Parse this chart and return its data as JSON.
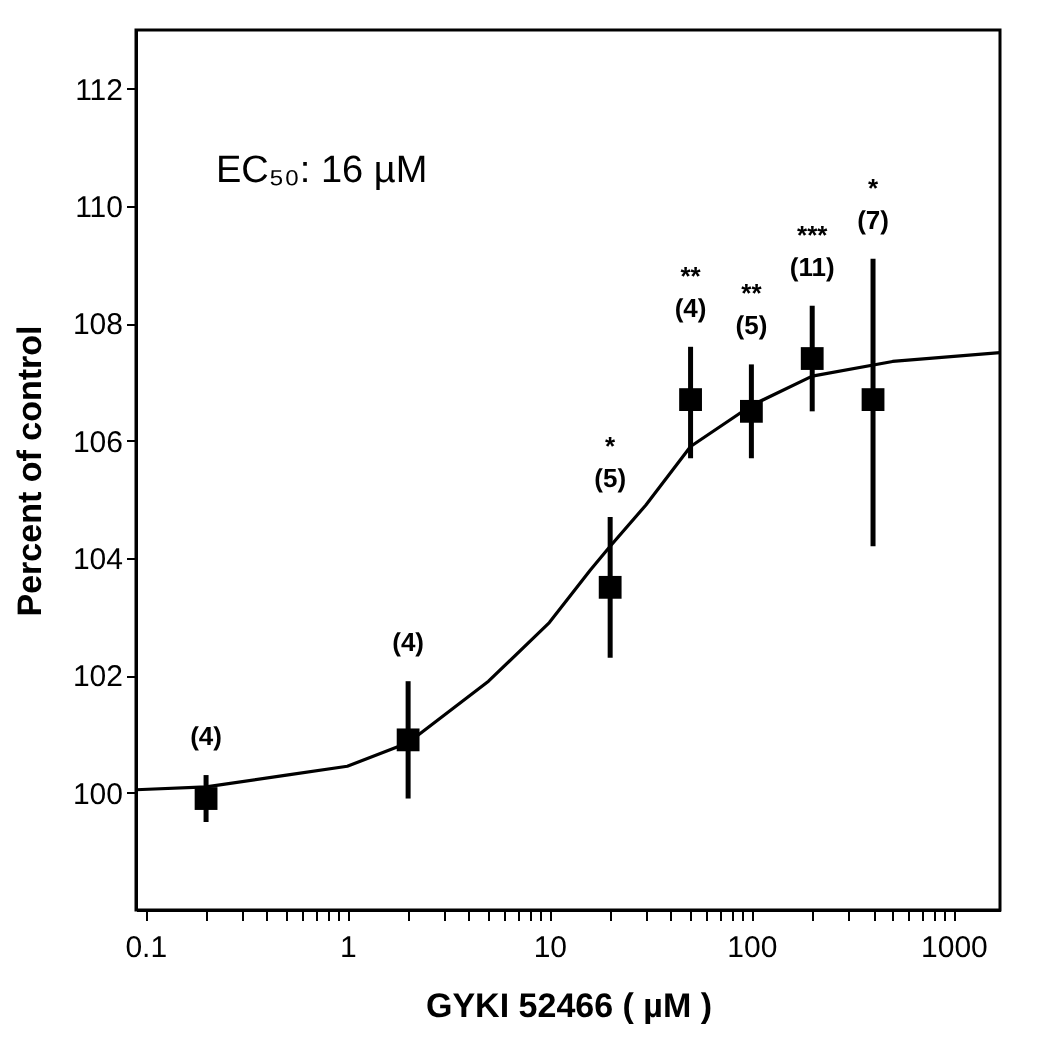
{
  "chart_data": {
    "type": "scatter",
    "xlabel": "GYKI 52466 ( µM )",
    "ylabel": "Percent of control",
    "log": "x",
    "grid": false,
    "marker": "square",
    "xlim": [
      0.09,
      1700
    ],
    "ylim": [
      98,
      113
    ],
    "xticks": [
      0.1,
      {
        "value": 0.2,
        "label": null
      },
      {
        "value": 0.3,
        "label": null
      },
      {
        "value": 0.4,
        "label": null
      },
      {
        "value": 0.5,
        "label": null
      },
      {
        "value": 0.6,
        "label": null
      },
      {
        "value": 0.7,
        "label": null
      },
      {
        "value": 0.8,
        "label": null
      },
      {
        "value": 0.9,
        "label": null
      },
      1,
      {
        "value": 2,
        "label": null
      },
      {
        "value": 3,
        "label": null
      },
      {
        "value": 4,
        "label": null
      },
      {
        "value": 5,
        "label": null
      },
      {
        "value": 6,
        "label": null
      },
      {
        "value": 7,
        "label": null
      },
      {
        "value": 8,
        "label": null
      },
      {
        "value": 9,
        "label": null
      },
      10,
      {
        "value": 20,
        "label": null
      },
      {
        "value": 30,
        "label": null
      },
      {
        "value": 40,
        "label": null
      },
      {
        "value": 50,
        "label": null
      },
      {
        "value": 60,
        "label": null
      },
      {
        "value": 70,
        "label": null
      },
      {
        "value": 80,
        "label": null
      },
      {
        "value": 90,
        "label": null
      },
      100,
      {
        "value": 200,
        "label": null
      },
      {
        "value": 300,
        "label": null
      },
      {
        "value": 400,
        "label": null
      },
      {
        "value": 500,
        "label": null
      },
      {
        "value": 600,
        "label": null
      },
      {
        "value": 700,
        "label": null
      },
      {
        "value": 800,
        "label": null
      },
      {
        "value": 900,
        "label": null
      },
      1000
    ],
    "yticks": [
      100,
      102,
      104,
      106,
      108,
      110,
      112
    ],
    "series": [
      {
        "type": "line",
        "color": "#000000",
        "marker": "none",
        "line_style": "solid",
        "x": [
          0.09,
          0.2,
          0.5,
          1,
          2,
          5,
          10,
          16,
          20,
          30,
          50,
          100,
          200,
          500,
          1700
        ],
        "values": [
          100.05,
          100.1,
          100.3,
          100.45,
          100.85,
          101.9,
          102.9,
          103.8,
          104.2,
          104.9,
          105.9,
          106.6,
          107.1,
          107.35,
          107.5
        ]
      },
      {
        "color": "#000000",
        "x": [
          0.2,
          2,
          20,
          50,
          100,
          200,
          400
        ],
        "values": [
          99.9,
          100.9,
          103.5,
          106.7,
          106.5,
          107.4,
          106.7
        ],
        "errors": [
          [
            99.5,
            100.3
          ],
          [
            99.9,
            101.9
          ],
          [
            102.3,
            104.7
          ],
          [
            105.7,
            107.6
          ],
          [
            105.7,
            107.3
          ],
          [
            106.5,
            108.3
          ],
          [
            104.2,
            109.1
          ]
        ]
      }
    ],
    "annotations": [
      "(4)",
      "(4)",
      "*\n(5)",
      "**\n(4)",
      "**\n(5)",
      "***\n(11)",
      "*\n(7)",
      "EC₅₀: 16 µM"
    ]
  }
}
